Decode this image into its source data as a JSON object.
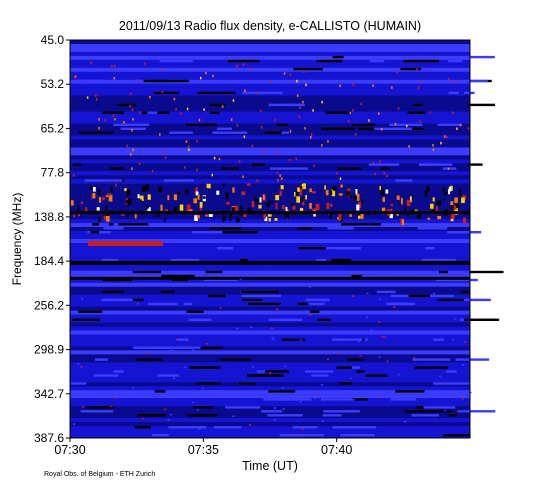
{
  "chart_data": {
    "type": "heatmap",
    "title": "2011/09/13  Radio flux density, e-CALLISTO (HUMAIN)",
    "xlabel": "Time (UT)",
    "ylabel": "Frequency (MHz)",
    "x_ticks": [
      "07:30",
      "07:35",
      "07:40"
    ],
    "y_ticks": [
      "45.0",
      "53.2",
      "65.2",
      "77.8",
      "138.8",
      "184.4",
      "256.2",
      "298.9",
      "342.7",
      "387.6"
    ],
    "y_range": [
      "45.0",
      "387.6"
    ],
    "colormap": [
      "#000000",
      "#0a0a8c",
      "#1414d2",
      "#3c3cff",
      "#c81e1e",
      "#ff7800",
      "#ffd200",
      "#ffffff"
    ],
    "background_color": "#0f0fb4",
    "features": [
      {
        "type": "burst band",
        "time_start": "07:30",
        "time_end": "07:45",
        "freq_from": "about 120 MHz",
        "freq_to": "about 160 MHz"
      },
      {
        "type": "red patch",
        "time_start": "07:30",
        "time_end": "07:33",
        "freq": "about 170 MHz"
      },
      {
        "type": "dark stripe",
        "time_start": "07:30",
        "time_end": "07:45",
        "freq": "about 195 MHz"
      }
    ],
    "credit": "Royal Obs. of Belgium - ETH Zurich"
  }
}
